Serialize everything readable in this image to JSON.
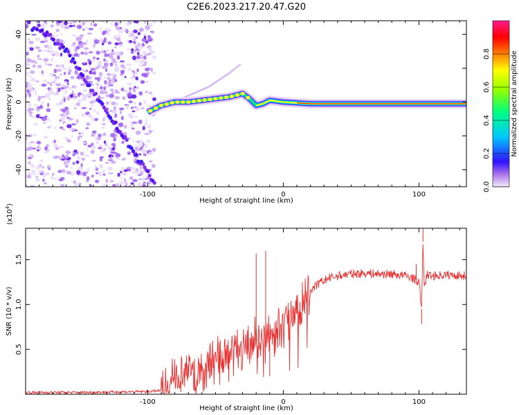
{
  "figure": {
    "title": "C2E6.2023.217.20.47.G20"
  },
  "chart_data": [
    {
      "type": "heatmap",
      "xlabel": "Height of straight line (km)",
      "ylabel": "Frequency (Hz)",
      "xlim": [
        -190,
        135
      ],
      "ylim": [
        -50,
        48
      ],
      "xticks": [
        -100,
        0,
        100
      ],
      "yticks": [
        -40,
        -20,
        0,
        20,
        40
      ],
      "colorbar": {
        "label": "Normalized spectral amplitude",
        "range": [
          0,
          1
        ],
        "ticks": [
          0.0,
          0.2,
          0.4,
          0.6,
          0.8
        ],
        "colormap": [
          "#f2e6fb",
          "#8a2be2",
          "#2020ff",
          "#00bfff",
          "#00ff80",
          "#80ff00",
          "#ffff00",
          "#ff8000",
          "#ff0000",
          "#ff1493"
        ]
      },
      "features": {
        "noise_region_x": [
          -190,
          -95
        ],
        "diagonal_trace": [
          [
            -180,
            44
          ],
          [
            -160,
            30
          ],
          [
            -145,
            12
          ],
          [
            -135,
            0
          ],
          [
            -120,
            -18
          ],
          [
            -105,
            -36
          ],
          [
            -95,
            -48
          ]
        ],
        "main_trace": [
          [
            -100,
            -6
          ],
          [
            -90,
            -2
          ],
          [
            -80,
            0
          ],
          [
            -70,
            0
          ],
          [
            -60,
            1
          ],
          [
            -50,
            2
          ],
          [
            -40,
            3
          ],
          [
            -30,
            5
          ],
          [
            -25,
            2
          ],
          [
            -20,
            -2
          ],
          [
            -15,
            -1
          ],
          [
            -10,
            1
          ],
          [
            0,
            0
          ],
          [
            20,
            -1
          ],
          [
            60,
            -1
          ],
          [
            100,
            -1
          ],
          [
            135,
            -1
          ]
        ],
        "faint_branch": [
          [
            -75,
            2
          ],
          [
            -55,
            9
          ],
          [
            -40,
            17
          ],
          [
            -32,
            22
          ]
        ]
      }
    },
    {
      "type": "line",
      "xlabel": "Height of straight line (km)",
      "ylabel": "SNR (10 * v/v)",
      "scale_label": "(x10",
      "scale_exp": "4",
      "scale_close": ")",
      "xlim": [
        -190,
        135
      ],
      "ylim": [
        0,
        1.85
      ],
      "xticks": [
        -100,
        0,
        100
      ],
      "yticks": [
        0.5,
        1.0,
        1.5
      ],
      "ytick_labels": [
        "0.5",
        "1.0",
        "1.5"
      ],
      "series": [
        {
          "color": "#e83030",
          "x": [
            -190,
            -150,
            -100,
            -90,
            -85,
            -80,
            -75,
            -70,
            -65,
            -60,
            -55,
            -50,
            -45,
            -40,
            -35,
            -30,
            -25,
            -20,
            -15,
            -10,
            -5,
            0,
            5,
            10,
            15,
            20,
            25,
            30,
            35,
            40,
            50,
            60,
            70,
            80,
            90,
            95,
            100,
            102,
            103,
            104,
            106,
            110,
            120,
            135
          ],
          "y": [
            0.02,
            0.02,
            0.03,
            0.04,
            0.1,
            0.2,
            0.23,
            0.27,
            0.2,
            0.25,
            0.32,
            0.35,
            0.4,
            0.43,
            0.47,
            0.52,
            0.55,
            0.6,
            0.62,
            0.65,
            0.7,
            0.78,
            0.85,
            0.95,
            1.05,
            1.15,
            1.22,
            1.27,
            1.3,
            1.32,
            1.34,
            1.35,
            1.34,
            1.34,
            1.32,
            1.3,
            1.25,
            0.95,
            1.7,
            1.2,
            1.33,
            1.32,
            1.33,
            1.32
          ]
        }
      ],
      "spikes": [
        [
          -20,
          1.57
        ],
        [
          -13,
          1.6
        ],
        [
          -10,
          0.2
        ],
        [
          103,
          1.85
        ],
        [
          102,
          0.78
        ],
        [
          98,
          1.45
        ]
      ]
    }
  ]
}
